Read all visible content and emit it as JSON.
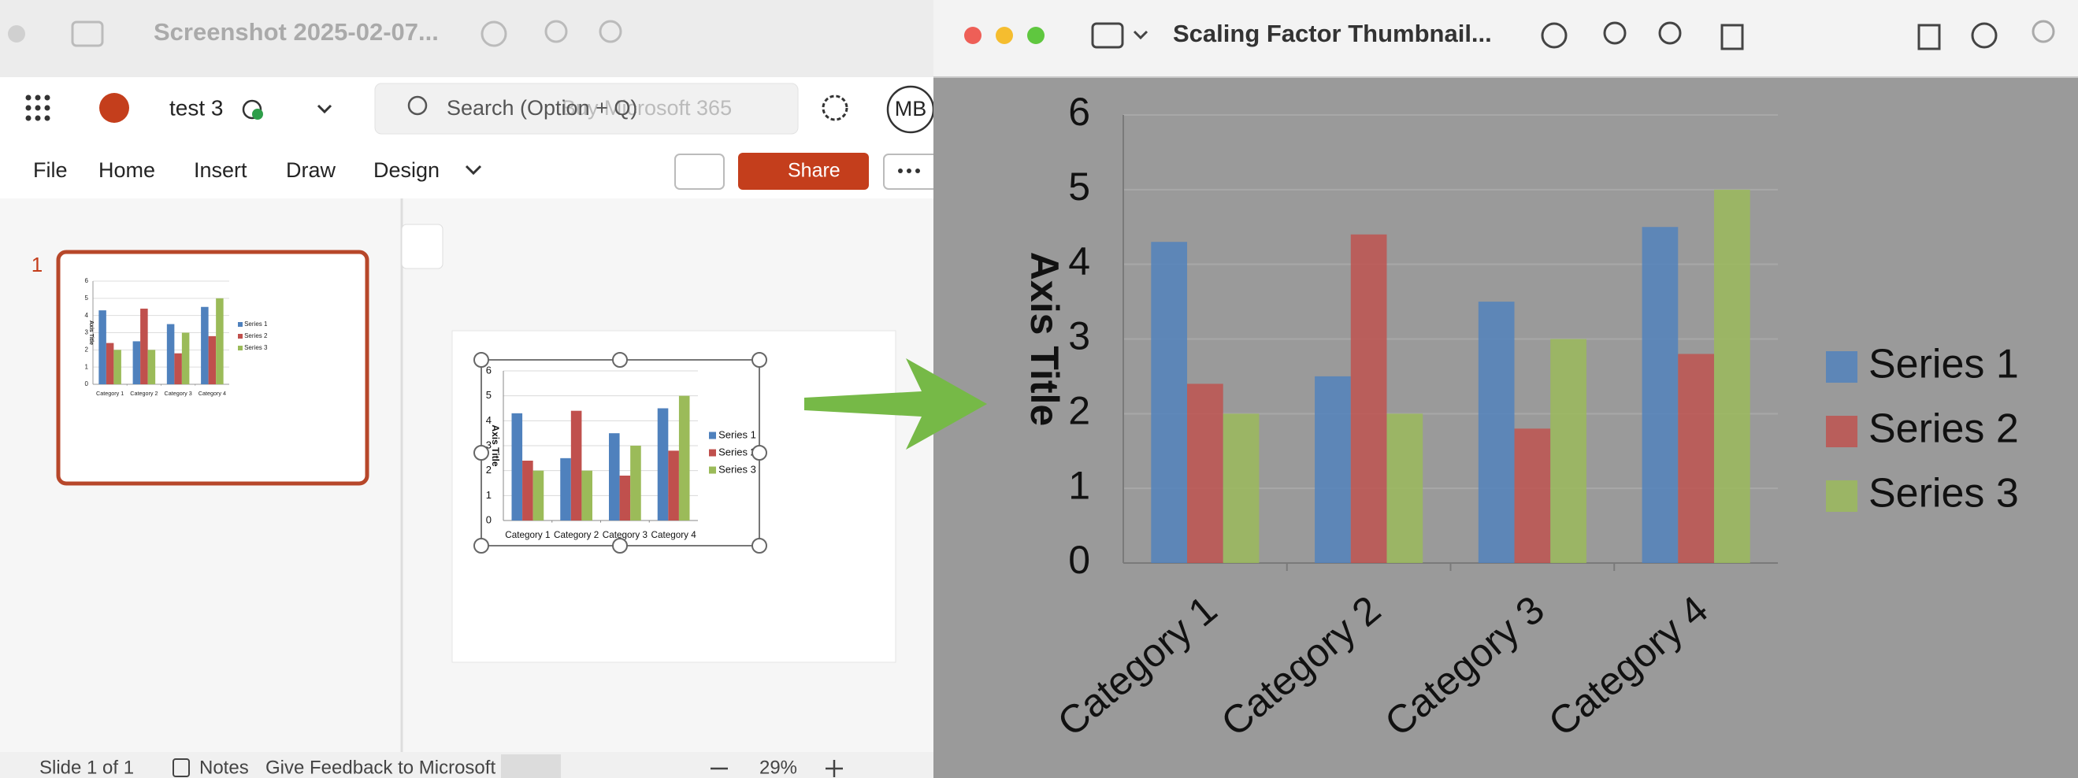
{
  "left_window": {
    "title": "Screenshot 2025-02-07...",
    "app": {
      "file_name": "test 3",
      "search": "Search (Option + Q)",
      "search_overlay": "Buy Microsoft 365",
      "avatar": "MB",
      "tabs": [
        "File",
        "Home",
        "Insert",
        "Draw",
        "Design"
      ],
      "share": "Share"
    },
    "slide_number": "1",
    "status_bar": {
      "slide_count": "Slide 1 of 1",
      "notes": "Notes",
      "feedback": "Give Feedback to Microsoft",
      "zoom": "29%"
    }
  },
  "right_window": {
    "title": "Scaling Factor Thumbnail..."
  },
  "chart_data": {
    "type": "bar",
    "y_axis_title": "Axis Title",
    "categories": [
      "Category 1",
      "Category 2",
      "Category 3",
      "Category 4"
    ],
    "series": [
      {
        "name": "Series 1",
        "color": "#4f81bd",
        "values": [
          4.3,
          2.5,
          3.5,
          4.5
        ]
      },
      {
        "name": "Series 2",
        "color": "#c0504d",
        "values": [
          2.4,
          4.4,
          1.8,
          2.8
        ]
      },
      {
        "name": "Series 3",
        "color": "#9bbb59",
        "values": [
          2,
          2,
          3,
          5
        ]
      }
    ],
    "ylim": [
      0,
      6
    ],
    "yticks": [
      0,
      1,
      2,
      3,
      4,
      5,
      6
    ],
    "grid": true,
    "legend": "right"
  }
}
